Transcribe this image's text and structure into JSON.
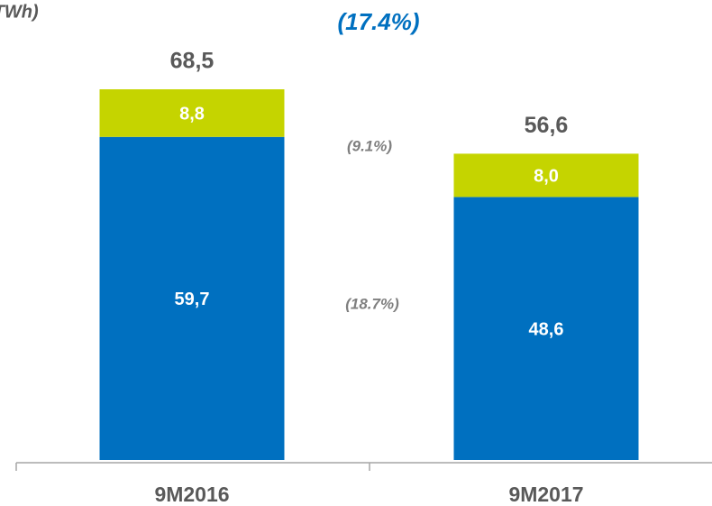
{
  "chart_data": {
    "type": "stacked_bar",
    "unit_label": "(TWh)",
    "categories": [
      "9M2016",
      "9M2017"
    ],
    "series": [
      {
        "color": "#0070c0",
        "values": [
          59.7,
          48.6
        ],
        "value_labels": [
          "59,7",
          "48,6"
        ]
      },
      {
        "color": "#c5d400",
        "values": [
          8.8,
          8.0
        ],
        "value_labels": [
          "8,8",
          "8,0"
        ]
      }
    ],
    "totals": [
      68.5,
      56.6
    ],
    "total_labels": [
      "68,5",
      "56,6"
    ],
    "annotations": [
      "(17.4%)",
      "(9.1%)",
      "(18.7%)"
    ],
    "ylim": [
      0,
      85
    ]
  }
}
